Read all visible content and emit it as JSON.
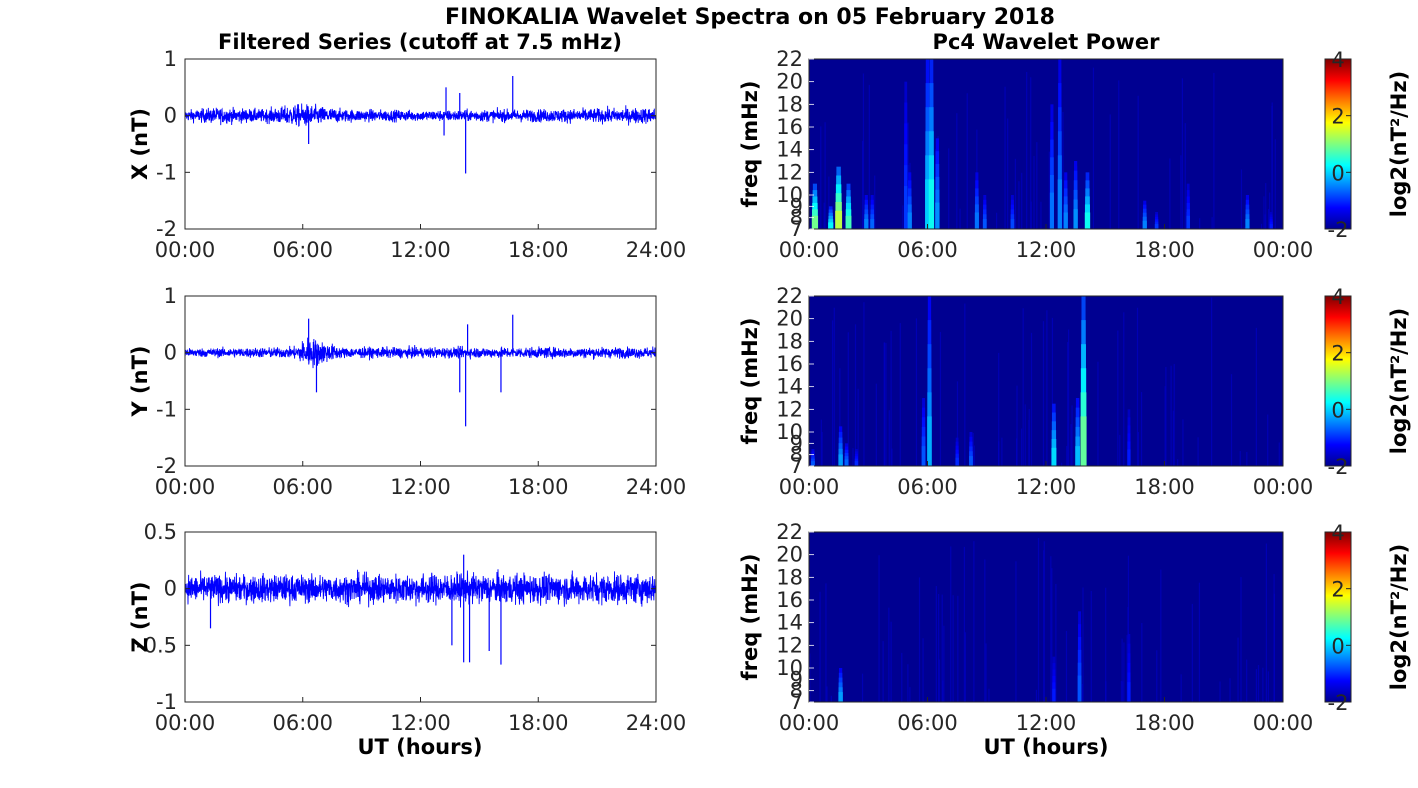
{
  "figure": {
    "title": "FINOKALIA Wavelet Spectra on 05 February 2018",
    "left_column_title": "Filtered Series (cutoff at 7.5 mHz)",
    "right_column_title": "Pc4 Wavelet Power",
    "xlabel": "UT (hours)"
  },
  "chart_data": [
    {
      "type": "line",
      "component": "X",
      "ylabel": "X (nT)",
      "xlim": [
        0,
        24
      ],
      "x_ticks": [
        "00:00",
        "06:00",
        "12:00",
        "18:00",
        "24:00"
      ],
      "ylim": [
        -2,
        1
      ],
      "y_ticks": [
        "1",
        "0",
        "-1",
        "-2"
      ],
      "series_color": "#0000ff",
      "noise_amplitude": [
        {
          "hour": 0,
          "amp": 0.1
        },
        {
          "hour": 1.5,
          "amp": 0.15
        },
        {
          "hour": 4,
          "amp": 0.12
        },
        {
          "hour": 6,
          "amp": 0.22
        },
        {
          "hour": 8,
          "amp": 0.12
        },
        {
          "hour": 12,
          "amp": 0.1
        },
        {
          "hour": 18,
          "amp": 0.12
        },
        {
          "hour": 24,
          "amp": 0.15
        }
      ],
      "spikes": [
        {
          "hour": 14.3,
          "value": -1.02
        },
        {
          "hour": 16.7,
          "value": 0.7
        },
        {
          "hour": 13.3,
          "value": 0.5
        },
        {
          "hour": 14.0,
          "value": 0.4
        },
        {
          "hour": 6.3,
          "value": -0.5
        },
        {
          "hour": 13.2,
          "value": -0.35
        }
      ]
    },
    {
      "type": "line",
      "component": "Y",
      "ylabel": "Y (nT)",
      "xlim": [
        0,
        24
      ],
      "x_ticks": [
        "00:00",
        "06:00",
        "12:00",
        "18:00",
        "24:00"
      ],
      "ylim": [
        -2,
        1
      ],
      "y_ticks": [
        "1",
        "0",
        "-1",
        "-2"
      ],
      "series_color": "#0000ff",
      "noise_amplitude": [
        {
          "hour": 0,
          "amp": 0.08
        },
        {
          "hour": 5.5,
          "amp": 0.1
        },
        {
          "hour": 6.3,
          "amp": 0.3
        },
        {
          "hour": 8,
          "amp": 0.1
        },
        {
          "hour": 12,
          "amp": 0.1
        },
        {
          "hour": 18,
          "amp": 0.1
        },
        {
          "hour": 24,
          "amp": 0.1
        }
      ],
      "spikes": [
        {
          "hour": 14.3,
          "value": -1.3
        },
        {
          "hour": 14.0,
          "value": -0.7
        },
        {
          "hour": 16.7,
          "value": 0.67
        },
        {
          "hour": 14.4,
          "value": 0.5
        },
        {
          "hour": 6.3,
          "value": 0.6
        },
        {
          "hour": 16.1,
          "value": -0.7
        },
        {
          "hour": 6.7,
          "value": -0.7
        }
      ]
    },
    {
      "type": "line",
      "component": "Z",
      "ylabel": "Z (nT)",
      "xlim": [
        0,
        24
      ],
      "x_ticks": [
        "00:00",
        "06:00",
        "12:00",
        "18:00",
        "24:00"
      ],
      "ylim": [
        -1,
        0.5
      ],
      "y_ticks": [
        "0.5",
        "0",
        "-0.5",
        "-1"
      ],
      "series_color": "#0000ff",
      "noise_amplitude": [
        {
          "hour": 0,
          "amp": 0.13
        },
        {
          "hour": 6,
          "amp": 0.13
        },
        {
          "hour": 12,
          "amp": 0.14
        },
        {
          "hour": 18,
          "amp": 0.14
        },
        {
          "hour": 24,
          "amp": 0.14
        }
      ],
      "spikes": [
        {
          "hour": 14.2,
          "value": -0.65
        },
        {
          "hour": 14.5,
          "value": -0.65
        },
        {
          "hour": 16.1,
          "value": -0.67
        },
        {
          "hour": 15.5,
          "value": -0.55
        },
        {
          "hour": 13.6,
          "value": -0.5
        },
        {
          "hour": 14.2,
          "value": 0.3
        },
        {
          "hour": 1.3,
          "value": -0.35
        }
      ]
    },
    {
      "type": "heatmap",
      "component": "X",
      "ylabel": "freq (mHz)",
      "xlim": [
        0,
        24
      ],
      "x_ticks": [
        "00:00",
        "06:00",
        "12:00",
        "18:00",
        "00:00"
      ],
      "ylim": [
        7,
        22
      ],
      "y_ticks": [
        "22",
        "20",
        "18",
        "16",
        "14",
        "12",
        "10",
        "9",
        "8",
        "7"
      ],
      "colorbar": {
        "label": "log2(nT²/Hz)",
        "range": [
          -2,
          4
        ],
        "ticks": [
          "4",
          "2",
          "0",
          "-2"
        ]
      },
      "bursts": [
        {
          "hour": 0.3,
          "power": 1.3,
          "top_freq": 11
        },
        {
          "hour": 1.5,
          "power": 1.8,
          "top_freq": 12.5
        },
        {
          "hour": 2.0,
          "power": 1.0,
          "top_freq": 11
        },
        {
          "hour": 1.1,
          "power": 0.5,
          "top_freq": 9
        },
        {
          "hour": 2.9,
          "power": -0.3,
          "top_freq": 10
        },
        {
          "hour": 3.2,
          "power": -0.5,
          "top_freq": 10
        },
        {
          "hour": 4.9,
          "power": -0.8,
          "top_freq": 20
        },
        {
          "hour": 5.1,
          "power": -0.3,
          "top_freq": 12
        },
        {
          "hour": 6.0,
          "power": 0.2,
          "top_freq": 22
        },
        {
          "hour": 6.2,
          "power": 0.6,
          "top_freq": 22
        },
        {
          "hour": 6.5,
          "power": -0.2,
          "top_freq": 15
        },
        {
          "hour": 8.5,
          "power": -0.4,
          "top_freq": 12
        },
        {
          "hour": 8.9,
          "power": -0.6,
          "top_freq": 10
        },
        {
          "hour": 10.3,
          "power": -0.7,
          "top_freq": 10
        },
        {
          "hour": 12.3,
          "power": -0.4,
          "top_freq": 18
        },
        {
          "hour": 12.7,
          "power": -0.3,
          "top_freq": 22
        },
        {
          "hour": 13.0,
          "power": -0.3,
          "top_freq": 12
        },
        {
          "hour": 13.5,
          "power": -0.2,
          "top_freq": 13
        },
        {
          "hour": 14.1,
          "power": 0.6,
          "top_freq": 12
        },
        {
          "hour": 17.0,
          "power": -0.3,
          "top_freq": 9.5
        },
        {
          "hour": 17.6,
          "power": -0.8,
          "top_freq": 8.5
        },
        {
          "hour": 19.2,
          "power": -0.8,
          "top_freq": 11
        },
        {
          "hour": 22.2,
          "power": -0.3,
          "top_freq": 10
        },
        {
          "hour": 23.4,
          "power": -1.0,
          "top_freq": 8.5
        }
      ]
    },
    {
      "type": "heatmap",
      "component": "Y",
      "ylabel": "freq (mHz)",
      "xlim": [
        0,
        24
      ],
      "x_ticks": [
        "00:00",
        "06:00",
        "12:00",
        "18:00",
        "00:00"
      ],
      "ylim": [
        7,
        22
      ],
      "y_ticks": [
        "22",
        "20",
        "18",
        "16",
        "14",
        "12",
        "10",
        "9",
        "8",
        "7"
      ],
      "colorbar": {
        "label": "log2(nT²/Hz)",
        "range": [
          -2,
          4
        ],
        "ticks": [
          "4",
          "2",
          "0",
          "-2"
        ]
      },
      "bursts": [
        {
          "hour": 0.2,
          "power": -0.6,
          "top_freq": 8.5
        },
        {
          "hour": 1.6,
          "power": -0.1,
          "top_freq": 10.5
        },
        {
          "hour": 1.9,
          "power": -0.5,
          "top_freq": 9
        },
        {
          "hour": 2.4,
          "power": -0.9,
          "top_freq": 8.5
        },
        {
          "hour": 5.8,
          "power": -0.6,
          "top_freq": 13
        },
        {
          "hour": 6.1,
          "power": 0.0,
          "top_freq": 22
        },
        {
          "hour": 7.5,
          "power": -0.9,
          "top_freq": 9.5
        },
        {
          "hour": 8.2,
          "power": -0.6,
          "top_freq": 10
        },
        {
          "hour": 12.4,
          "power": 0.3,
          "top_freq": 12.5
        },
        {
          "hour": 13.6,
          "power": 0.1,
          "top_freq": 13
        },
        {
          "hour": 13.9,
          "power": 1.2,
          "top_freq": 22
        },
        {
          "hour": 16.2,
          "power": -1.0,
          "top_freq": 12
        }
      ]
    },
    {
      "type": "heatmap",
      "component": "Z",
      "ylabel": "freq (mHz)",
      "xlim": [
        0,
        24
      ],
      "x_ticks": [
        "00:00",
        "06:00",
        "12:00",
        "18:00",
        "00:00"
      ],
      "ylim": [
        7,
        22
      ],
      "y_ticks": [
        "22",
        "20",
        "18",
        "16",
        "14",
        "12",
        "10",
        "9",
        "8",
        "7"
      ],
      "colorbar": {
        "label": "log2(nT²/Hz)",
        "range": [
          -2,
          4
        ],
        "ticks": [
          "4",
          "2",
          "0",
          "-2"
        ]
      },
      "bursts": [
        {
          "hour": 1.6,
          "power": -0.1,
          "top_freq": 10
        },
        {
          "hour": 12.4,
          "power": -1.0,
          "top_freq": 11
        },
        {
          "hour": 13.7,
          "power": -0.6,
          "top_freq": 15
        },
        {
          "hour": 16.2,
          "power": -1.0,
          "top_freq": 13
        }
      ]
    }
  ]
}
